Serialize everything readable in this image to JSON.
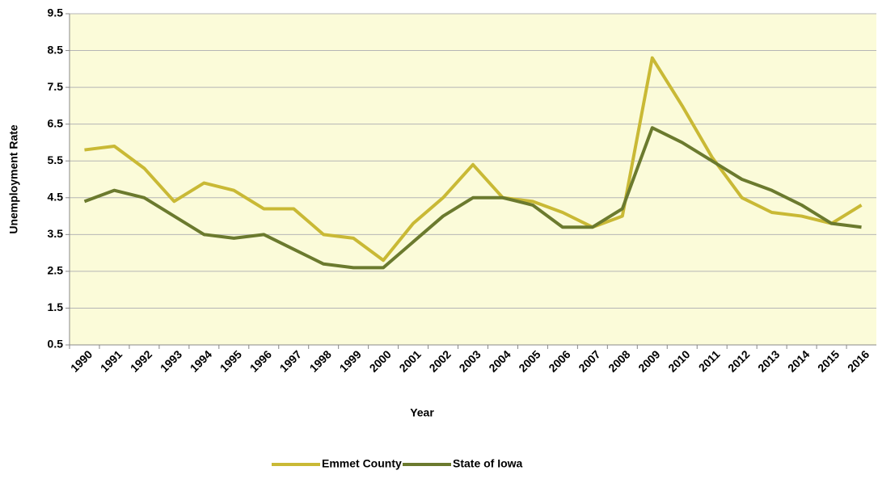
{
  "chart_data": {
    "type": "line",
    "x_label": "Year",
    "y_label": "Unemployment Rate",
    "categories": [
      "1990",
      "1991",
      "1992",
      "1993",
      "1994",
      "1995",
      "1996",
      "1997",
      "1998",
      "1999",
      "2000",
      "2001",
      "2002",
      "2003",
      "2004",
      "2005",
      "2006",
      "2007",
      "2008",
      "2009",
      "2010",
      "2011",
      "2012",
      "2013",
      "2014",
      "2015",
      "2016"
    ],
    "series": [
      {
        "name": "Emmet County",
        "color": "#c9b935",
        "values": [
          5.8,
          5.9,
          5.3,
          4.4,
          4.9,
          4.7,
          4.2,
          4.2,
          3.5,
          3.4,
          2.8,
          3.8,
          4.5,
          5.4,
          4.5,
          4.4,
          4.1,
          3.7,
          4.0,
          8.3,
          7.0,
          5.6,
          4.5,
          4.1,
          4.0,
          3.8,
          4.3
        ]
      },
      {
        "name": "State of Iowa",
        "color": "#6b7a2e",
        "values": [
          4.4,
          4.7,
          4.5,
          4.0,
          3.5,
          3.4,
          3.5,
          3.1,
          2.7,
          2.6,
          2.6,
          3.3,
          4.0,
          4.5,
          4.5,
          4.3,
          3.7,
          3.7,
          4.2,
          6.4,
          6.0,
          5.5,
          5.0,
          4.7,
          4.3,
          3.8,
          3.7
        ]
      }
    ],
    "ylim": [
      0.5,
      9.5
    ],
    "yticks": [
      0.5,
      1.5,
      2.5,
      3.5,
      4.5,
      5.5,
      6.5,
      7.5,
      8.5,
      9.5
    ],
    "grid": true,
    "legend": "bottom",
    "plot_background": "#fbfbd9"
  }
}
